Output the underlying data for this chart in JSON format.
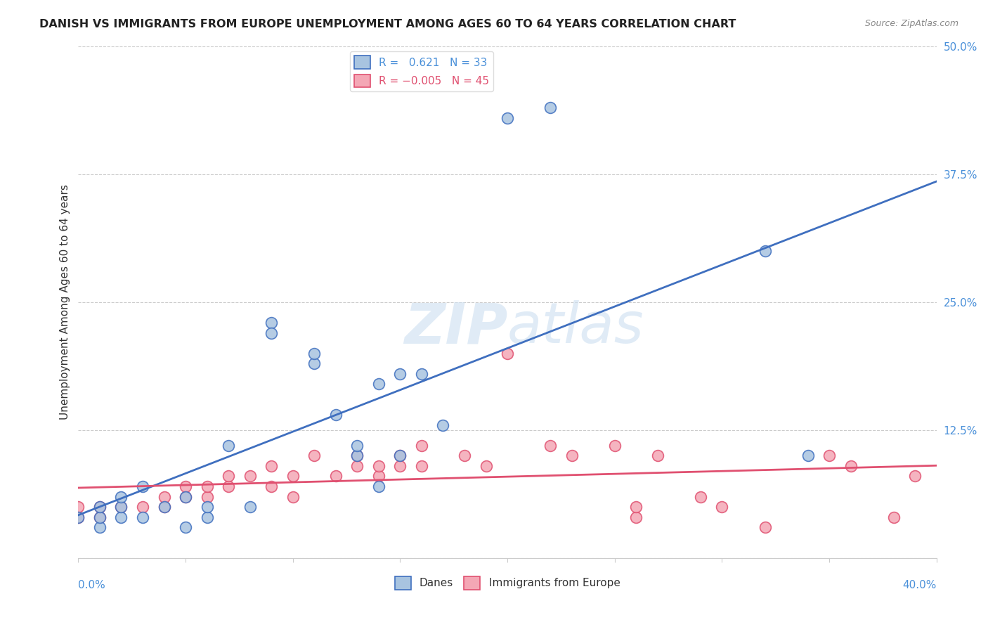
{
  "title": "DANISH VS IMMIGRANTS FROM EUROPE UNEMPLOYMENT AMONG AGES 60 TO 64 YEARS CORRELATION CHART",
  "source": "Source: ZipAtlas.com",
  "ylabel": "Unemployment Among Ages 60 to 64 years",
  "xlim": [
    0.0,
    0.4
  ],
  "ylim": [
    0.0,
    0.5
  ],
  "yticks": [
    0.0,
    0.125,
    0.25,
    0.375,
    0.5
  ],
  "ytick_labels": [
    "",
    "12.5%",
    "25.0%",
    "37.5%",
    "50.0%"
  ],
  "danes_R": 0.621,
  "danes_N": 33,
  "immigrants_R": -0.005,
  "immigrants_N": 45,
  "danes_color": "#a8c4e0",
  "danes_line_color": "#3f6fbf",
  "immigrants_color": "#f4a7b5",
  "immigrants_line_color": "#e05070",
  "danes_x": [
    0.0,
    0.01,
    0.01,
    0.01,
    0.02,
    0.02,
    0.02,
    0.03,
    0.03,
    0.04,
    0.05,
    0.05,
    0.06,
    0.06,
    0.07,
    0.08,
    0.09,
    0.09,
    0.11,
    0.11,
    0.12,
    0.13,
    0.13,
    0.14,
    0.14,
    0.15,
    0.15,
    0.16,
    0.17,
    0.2,
    0.22,
    0.32,
    0.34
  ],
  "danes_y": [
    0.04,
    0.03,
    0.04,
    0.05,
    0.04,
    0.05,
    0.06,
    0.04,
    0.07,
    0.05,
    0.03,
    0.06,
    0.04,
    0.05,
    0.11,
    0.05,
    0.23,
    0.22,
    0.19,
    0.2,
    0.14,
    0.1,
    0.11,
    0.07,
    0.17,
    0.1,
    0.18,
    0.18,
    0.13,
    0.43,
    0.44,
    0.3,
    0.1
  ],
  "immigrants_x": [
    0.0,
    0.0,
    0.01,
    0.01,
    0.02,
    0.03,
    0.04,
    0.04,
    0.05,
    0.05,
    0.06,
    0.06,
    0.07,
    0.07,
    0.08,
    0.09,
    0.09,
    0.1,
    0.1,
    0.11,
    0.12,
    0.13,
    0.13,
    0.14,
    0.14,
    0.15,
    0.15,
    0.16,
    0.16,
    0.18,
    0.19,
    0.2,
    0.22,
    0.23,
    0.25,
    0.26,
    0.26,
    0.27,
    0.29,
    0.3,
    0.32,
    0.35,
    0.36,
    0.38,
    0.39
  ],
  "immigrants_y": [
    0.04,
    0.05,
    0.04,
    0.05,
    0.05,
    0.05,
    0.05,
    0.06,
    0.06,
    0.07,
    0.06,
    0.07,
    0.07,
    0.08,
    0.08,
    0.07,
    0.09,
    0.06,
    0.08,
    0.1,
    0.08,
    0.09,
    0.1,
    0.08,
    0.09,
    0.1,
    0.09,
    0.09,
    0.11,
    0.1,
    0.09,
    0.2,
    0.11,
    0.1,
    0.11,
    0.04,
    0.05,
    0.1,
    0.06,
    0.05,
    0.03,
    0.1,
    0.09,
    0.04,
    0.08
  ]
}
